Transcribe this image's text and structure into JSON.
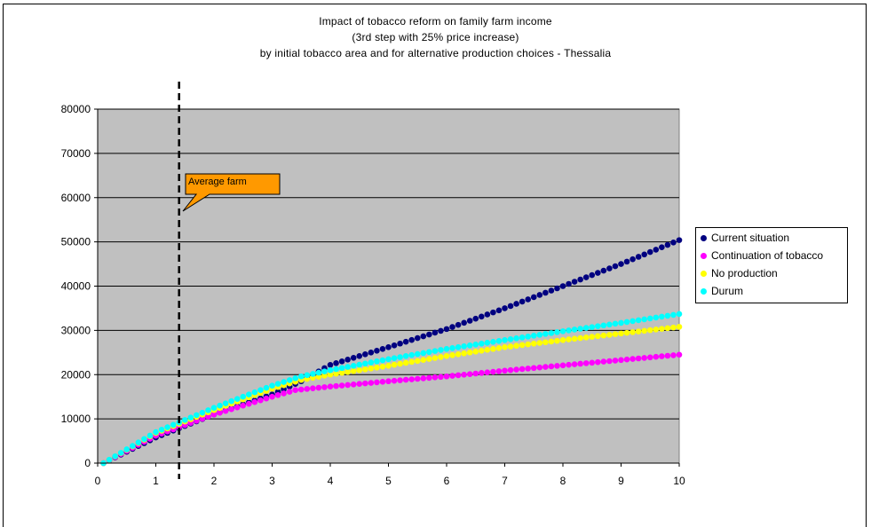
{
  "chart_data": {
    "type": "scatter",
    "title": [
      "Impact of  tobacco reform on family farm income",
      "(3rd step with 25% price increase)",
      "by initial tobacco area and for alternative production choices - Thessalia"
    ],
    "xlabel": "",
    "ylabel": "",
    "xlim": [
      0,
      10
    ],
    "ylim": [
      0,
      80000
    ],
    "x_ticks": [
      "0",
      "1",
      "2",
      "3",
      "4",
      "5",
      "6",
      "7",
      "8",
      "9",
      "10"
    ],
    "y_ticks": [
      "0",
      "10000",
      "20000",
      "30000",
      "40000",
      "50000",
      "60000",
      "70000",
      "80000"
    ],
    "grid": "horizontal",
    "plot_background": "#c0c0c0",
    "legend_position": "right",
    "series": [
      {
        "name": "Current situation",
        "color": "#000080",
        "x": [
          0.1,
          1,
          2,
          3,
          3.5,
          4,
          5,
          6,
          7,
          8,
          9,
          10
        ],
        "y": [
          0,
          5800,
          11000,
          15500,
          18500,
          22200,
          26200,
          30300,
          35000,
          40000,
          45000,
          50400
        ]
      },
      {
        "name": "Continuation of tobacco",
        "color": "#ff00ff",
        "x": [
          0.1,
          1,
          2,
          3,
          3.4,
          4,
          5,
          6,
          7,
          8,
          9,
          10
        ],
        "y": [
          0,
          6200,
          11000,
          15000,
          16500,
          17300,
          18500,
          19600,
          20900,
          22100,
          23300,
          24500
        ]
      },
      {
        "name": "No production",
        "color": "#ffff00",
        "x": [
          0.1,
          1,
          2,
          3,
          3.5,
          4,
          5,
          6,
          7,
          8,
          9,
          10
        ],
        "y": [
          0,
          6800,
          12000,
          16800,
          18800,
          20000,
          22000,
          24200,
          26200,
          27800,
          29300,
          30800
        ]
      },
      {
        "name": "Durum",
        "color": "#00ffff",
        "x": [
          0.1,
          1,
          2,
          3,
          3.5,
          4,
          5,
          6,
          7,
          8,
          9,
          10
        ],
        "y": [
          0,
          7000,
          12500,
          17500,
          19600,
          21000,
          23500,
          25800,
          27800,
          29800,
          31700,
          33700
        ]
      }
    ],
    "reference_line": {
      "x": 1.4,
      "style": "dashed",
      "color": "#000000"
    },
    "annotation": {
      "text": "Average farm",
      "color": "#ff9900"
    }
  }
}
